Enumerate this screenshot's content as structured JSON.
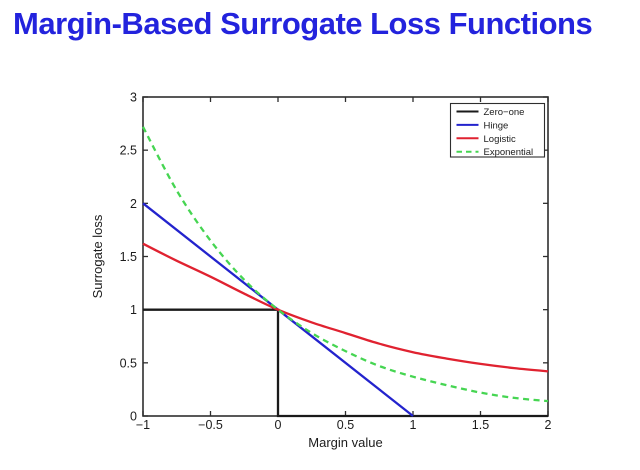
{
  "title": {
    "text": "Margin-Based Surrogate Loss Functions",
    "color": "#2323dd"
  },
  "chart_data": {
    "type": "line",
    "title": "",
    "xlabel": "Margin value",
    "ylabel": "Surrogate loss",
    "xlim": [
      -1,
      2
    ],
    "ylim": [
      0,
      3
    ],
    "x_ticks": [
      -1,
      -0.5,
      0,
      0.5,
      1,
      1.5,
      2
    ],
    "x_tick_labels": [
      "−1",
      "−0.5",
      "0",
      "0.5",
      "1",
      "1.5",
      "2"
    ],
    "y_ticks": [
      0,
      0.5,
      1,
      1.5,
      2,
      2.5,
      3
    ],
    "y_tick_labels": [
      "0",
      "0.5",
      "1",
      "1.5",
      "2",
      "2.5",
      "3"
    ],
    "grid": false,
    "legend": {
      "position": "top-right"
    },
    "frame_color": "#2e2e2e",
    "series": [
      {
        "name": "Zero−one",
        "color": "#1a1a1a",
        "style": "solid",
        "smooth": false,
        "points": [
          [
            -1,
            1
          ],
          [
            0,
            1
          ],
          [
            0,
            0
          ],
          [
            2,
            0
          ]
        ]
      },
      {
        "name": "Hinge",
        "color": "#2323cd",
        "style": "solid",
        "smooth": false,
        "points": [
          [
            -1,
            2
          ],
          [
            0,
            1
          ],
          [
            1,
            0
          ]
        ]
      },
      {
        "name": "Logistic",
        "color": "#e02230",
        "style": "solid",
        "smooth": true,
        "points": [
          [
            -1,
            1.62
          ],
          [
            -0.75,
            1.46
          ],
          [
            -0.5,
            1.31
          ],
          [
            -0.25,
            1.15
          ],
          [
            0,
            1.0
          ],
          [
            0.25,
            0.88
          ],
          [
            0.5,
            0.78
          ],
          [
            0.75,
            0.68
          ],
          [
            1,
            0.6
          ],
          [
            1.25,
            0.54
          ],
          [
            1.5,
            0.49
          ],
          [
            1.75,
            0.45
          ],
          [
            2,
            0.42
          ]
        ]
      },
      {
        "name": "Exponential",
        "color": "#46d552",
        "style": "dashed",
        "smooth": true,
        "points": [
          [
            -1,
            2.72
          ],
          [
            -0.75,
            2.12
          ],
          [
            -0.5,
            1.65
          ],
          [
            -0.25,
            1.28
          ],
          [
            0,
            1.0
          ],
          [
            0.25,
            0.78
          ],
          [
            0.5,
            0.61
          ],
          [
            0.75,
            0.47
          ],
          [
            1,
            0.37
          ],
          [
            1.25,
            0.29
          ],
          [
            1.5,
            0.22
          ],
          [
            1.75,
            0.17
          ],
          [
            2,
            0.14
          ]
        ]
      }
    ]
  }
}
